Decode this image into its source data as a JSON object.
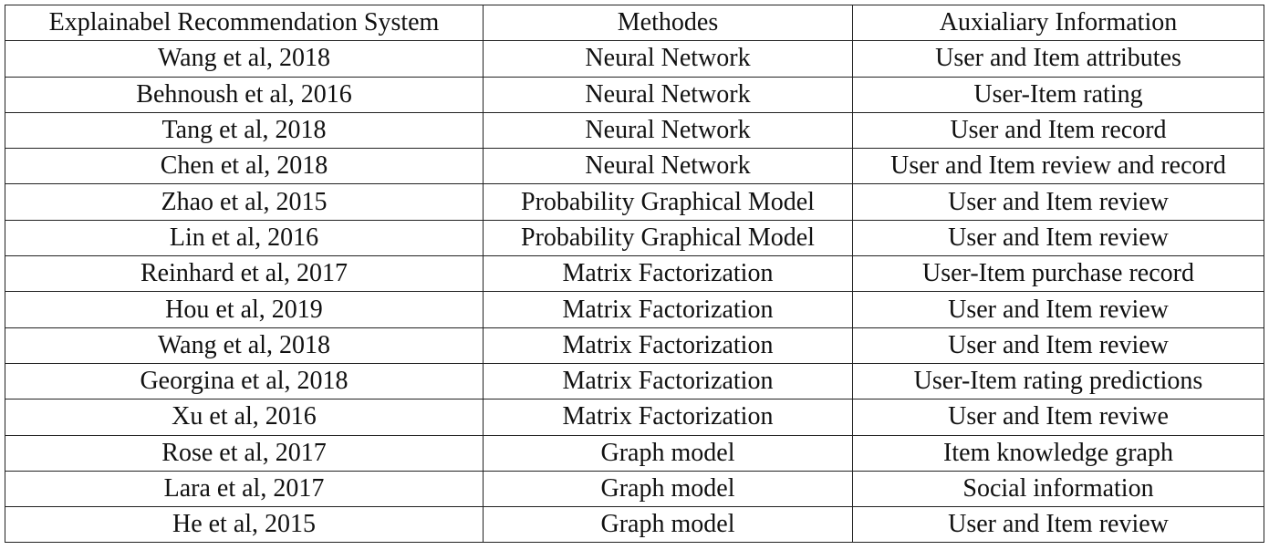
{
  "table": {
    "headers": [
      "Explainabel Recommendation System",
      "Methodes",
      "Auxialiary Information"
    ],
    "rows": [
      [
        "Wang et al, 2018",
        "Neural Network",
        "User and Item attributes"
      ],
      [
        "Behnoush et al, 2016",
        "Neural Network",
        "User-Item rating"
      ],
      [
        "Tang et al, 2018",
        "Neural Network",
        "User and Item record"
      ],
      [
        "Chen et al, 2018",
        "Neural Network",
        "User and Item review and record"
      ],
      [
        "Zhao et al, 2015",
        "Probability Graphical Model",
        "User and Item review"
      ],
      [
        "Lin et al, 2016",
        "Probability Graphical Model",
        "User and Item review"
      ],
      [
        "Reinhard et al, 2017",
        "Matrix Factorization",
        "User-Item purchase record"
      ],
      [
        "Hou et al, 2019",
        "Matrix Factorization",
        "User and Item review"
      ],
      [
        "Wang et al, 2018",
        "Matrix Factorization",
        "User and Item review"
      ],
      [
        "Georgina et al, 2018",
        "Matrix Factorization",
        "User-Item rating predictions"
      ],
      [
        "Xu et al, 2016",
        "Matrix Factorization",
        "User and Item reviwe"
      ],
      [
        "Rose et al, 2017",
        "Graph model",
        "Item knowledge graph"
      ],
      [
        "Lara et al, 2017",
        "Graph model",
        "Social information"
      ],
      [
        "He et al, 2015",
        "Graph model",
        "User and Item review"
      ]
    ]
  }
}
